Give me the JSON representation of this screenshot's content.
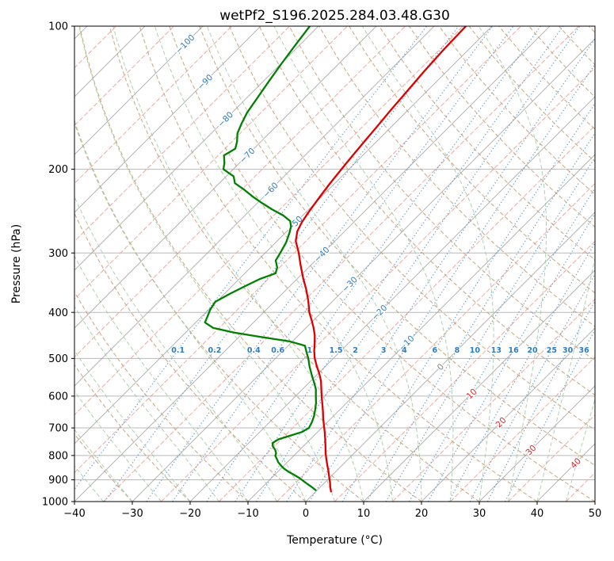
{
  "chart_data": {
    "type": "line",
    "chart_kind": "skew-t-log-p-sounding",
    "title": "wetPf2_S196.2025.284.03.48.G30",
    "xlabel": "Temperature (°C)",
    "ylabel": "Pressure (hPa)",
    "xlim": [
      -40,
      50
    ],
    "pressure_lim": [
      1000,
      100
    ],
    "x_tick_values": [
      -40,
      -30,
      -20,
      -10,
      0,
      10,
      20,
      30,
      40,
      50
    ],
    "x_tick_labels": [
      "−40",
      "−30",
      "−20",
      "−10",
      "0",
      "10",
      "20",
      "30",
      "40",
      "50"
    ],
    "pressure_tick_values": [
      100,
      200,
      300,
      400,
      500,
      600,
      700,
      800,
      900,
      1000
    ],
    "pressure_tick_labels": [
      "100",
      "200",
      "300",
      "400",
      "500",
      "600",
      "700",
      "800",
      "900",
      "1000"
    ],
    "legend_position": "none",
    "grid": true,
    "series": [
      {
        "name": "temperature",
        "color": "#dd0000",
        "width": 2.3,
        "points": [
          [
            100,
            -54.5
          ],
          [
            112,
            -54.3
          ],
          [
            125,
            -53.9
          ],
          [
            138,
            -53.4
          ],
          [
            150,
            -53.0
          ],
          [
            163,
            -52.5
          ],
          [
            175,
            -52.1
          ],
          [
            188,
            -51.7
          ],
          [
            200,
            -51.3
          ],
          [
            215,
            -50.8
          ],
          [
            230,
            -50.2
          ],
          [
            245,
            -49.6
          ],
          [
            258,
            -49.0
          ],
          [
            270,
            -48.2
          ],
          [
            283,
            -46.8
          ],
          [
            300,
            -44.2
          ],
          [
            318,
            -41.8
          ],
          [
            338,
            -39.2
          ],
          [
            358,
            -36.6
          ],
          [
            378,
            -34.3
          ],
          [
            400,
            -32.1
          ],
          [
            415,
            -30.4
          ],
          [
            430,
            -28.8
          ],
          [
            447,
            -27.2
          ],
          [
            465,
            -25.8
          ],
          [
            482,
            -24.6
          ],
          [
            500,
            -23.2
          ],
          [
            518,
            -21.6
          ],
          [
            538,
            -19.8
          ],
          [
            558,
            -18.2
          ],
          [
            578,
            -16.9
          ],
          [
            600,
            -15.5
          ],
          [
            622,
            -14.1
          ],
          [
            645,
            -12.7
          ],
          [
            668,
            -11.4
          ],
          [
            692,
            -10.0
          ],
          [
            715,
            -8.7
          ],
          [
            738,
            -7.5
          ],
          [
            762,
            -6.3
          ],
          [
            788,
            -5.1
          ],
          [
            812,
            -3.9
          ],
          [
            838,
            -2.6
          ],
          [
            862,
            -1.4
          ],
          [
            888,
            -0.2
          ],
          [
            912,
            0.9
          ],
          [
            932,
            1.7
          ],
          [
            952,
            2.6
          ]
        ]
      },
      {
        "name": "dewpoint",
        "color": "#008000",
        "width": 2.3,
        "points": [
          [
            100,
            -81.5
          ],
          [
            110,
            -80.7
          ],
          [
            120,
            -79.9
          ],
          [
            130,
            -79.1
          ],
          [
            141,
            -78.2
          ],
          [
            152,
            -77.4
          ],
          [
            160,
            -76.5
          ],
          [
            168,
            -75.5
          ],
          [
            175,
            -74.1
          ],
          [
            181,
            -73.2
          ],
          [
            187,
            -74.0
          ],
          [
            194,
            -72.6
          ],
          [
            200,
            -71.7
          ],
          [
            207,
            -68.7
          ],
          [
            214,
            -67.3
          ],
          [
            221,
            -64.5
          ],
          [
            228,
            -62.0
          ],
          [
            235,
            -59.4
          ],
          [
            243,
            -56.3
          ],
          [
            250,
            -53.4
          ],
          [
            257,
            -51.2
          ],
          [
            264,
            -50.1
          ],
          [
            272,
            -49.3
          ],
          [
            285,
            -48.2
          ],
          [
            300,
            -47.4
          ],
          [
            311,
            -46.9
          ],
          [
            322,
            -45.4
          ],
          [
            331,
            -44.7
          ],
          [
            340,
            -46.4
          ],
          [
            352,
            -47.7
          ],
          [
            365,
            -49.0
          ],
          [
            380,
            -50.2
          ],
          [
            395,
            -49.7
          ],
          [
            408,
            -49.0
          ],
          [
            420,
            -48.4
          ],
          [
            431,
            -46.1
          ],
          [
            441,
            -41.6
          ],
          [
            450,
            -36.6
          ],
          [
            460,
            -30.6
          ],
          [
            470,
            -27.1
          ],
          [
            485,
            -25.7
          ],
          [
            500,
            -24.3
          ],
          [
            520,
            -22.7
          ],
          [
            540,
            -21.0
          ],
          [
            560,
            -19.3
          ],
          [
            580,
            -17.7
          ],
          [
            600,
            -16.5
          ],
          [
            620,
            -15.3
          ],
          [
            640,
            -14.3
          ],
          [
            660,
            -13.4
          ],
          [
            680,
            -12.7
          ],
          [
            700,
            -12.2
          ],
          [
            714,
            -12.7
          ],
          [
            727,
            -14.1
          ],
          [
            740,
            -15.5
          ],
          [
            753,
            -15.9
          ],
          [
            766,
            -15.2
          ],
          [
            779,
            -14.2
          ],
          [
            791,
            -13.5
          ],
          [
            801,
            -13.2
          ],
          [
            813,
            -12.4
          ],
          [
            826,
            -11.6
          ],
          [
            839,
            -10.6
          ],
          [
            852,
            -9.5
          ],
          [
            866,
            -8.1
          ],
          [
            879,
            -6.6
          ],
          [
            893,
            -5.1
          ],
          [
            906,
            -3.9
          ],
          [
            919,
            -2.7
          ],
          [
            933,
            -1.4
          ],
          [
            946,
            -0.3
          ]
        ]
      }
    ],
    "background": {
      "pressure_gridline_color": "#9c9c9c",
      "isotherms": {
        "min": -160,
        "max": 60,
        "step": 5,
        "solid_every": 10,
        "solid_color": "#9c9c9c",
        "dashed_color": "#f1a096"
      },
      "dry_adiabats": {
        "theta_min": -40,
        "theta_max": 200,
        "step": 10,
        "color": "#c09a6a"
      },
      "moist_adiabats": {
        "t0_min": -40,
        "t0_max": 45,
        "step": 5,
        "color": "#99c899"
      },
      "mixing_ratio_lines": {
        "values_g_kg": [
          0.1,
          0.2,
          0.4,
          0.6,
          1,
          1.5,
          2,
          3,
          4,
          6,
          8,
          10,
          13,
          16,
          20,
          25,
          30,
          36
        ],
        "labels": [
          "0.1",
          "0.2",
          "0.4",
          "0.6",
          "1",
          "1.5",
          "2",
          "3",
          "4",
          "6",
          "8",
          "10",
          "13",
          "16",
          "20",
          "25",
          "30",
          "36"
        ],
        "color": "#5e9bcd",
        "label_color": "#2e7bbf",
        "label_pressure_hpa": 480
      },
      "isotherm_labels": {
        "negative_color": "#2e7bbf",
        "zero_color": "#808080",
        "positive_color": "#d62728",
        "items": [
          {
            "t": -100,
            "p": 109,
            "label": "−100"
          },
          {
            "t": -90,
            "p": 131,
            "label": "−90"
          },
          {
            "t": -80,
            "p": 157,
            "label": "−80"
          },
          {
            "t": -70,
            "p": 187,
            "label": "−70"
          },
          {
            "t": -60,
            "p": 221,
            "label": "−60"
          },
          {
            "t": -50,
            "p": 260,
            "label": "−50"
          },
          {
            "t": -40,
            "p": 302,
            "label": "−40"
          },
          {
            "t": -30,
            "p": 349,
            "label": "−30"
          },
          {
            "t": -20,
            "p": 400,
            "label": "−20"
          },
          {
            "t": -10,
            "p": 464,
            "label": "−10"
          },
          {
            "t": 0,
            "p": 521,
            "label": "0"
          },
          {
            "t": 10,
            "p": 593,
            "label": "10"
          },
          {
            "t": 20,
            "p": 681,
            "label": "20"
          },
          {
            "t": 30,
            "p": 779,
            "label": "30"
          },
          {
            "t": 40,
            "p": 830,
            "label": "40"
          }
        ]
      }
    }
  }
}
